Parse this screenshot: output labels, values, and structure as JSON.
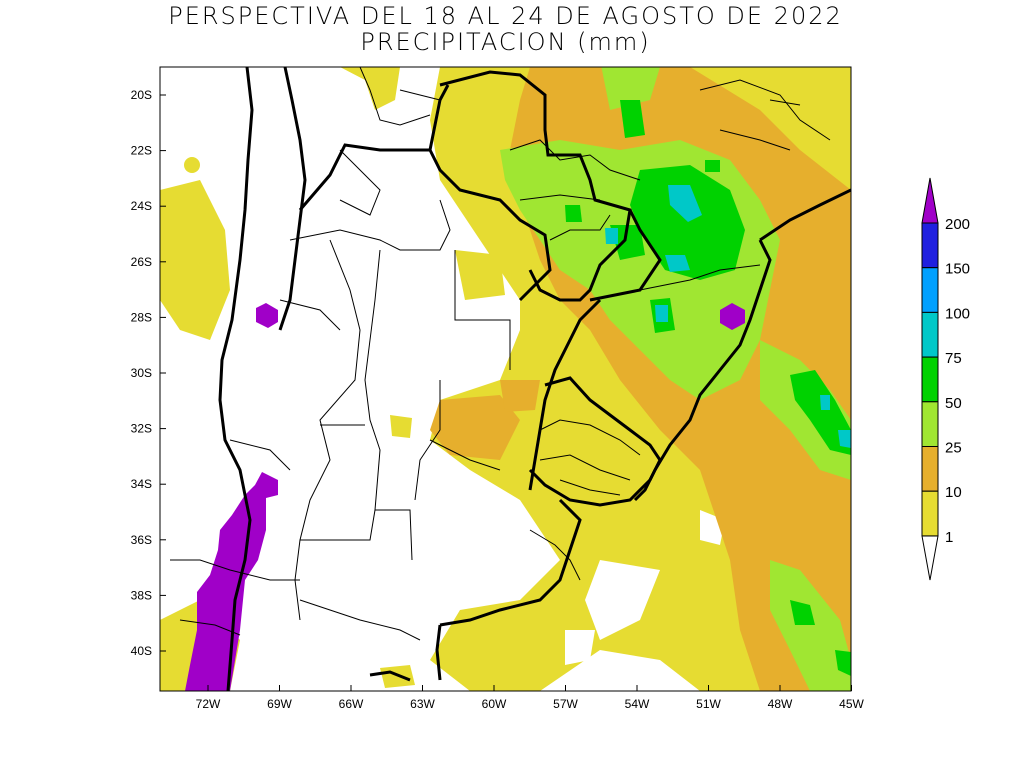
{
  "title": "PERSPECTIVA DEL 18 AL 24 DE AGOSTO DE 2022",
  "subtitle": "PRECIPITACION (mm)",
  "lat_ticks": [
    "20S",
    "22S",
    "24S",
    "26S",
    "28S",
    "30S",
    "32S",
    "34S",
    "36S",
    "38S",
    "40S"
  ],
  "lon_ticks": [
    "72W",
    "69W",
    "66W",
    "63W",
    "60W",
    "57W",
    "54W",
    "51W",
    "48W",
    "45W"
  ],
  "legend": {
    "labels": [
      "200",
      "150",
      "100",
      "75",
      "50",
      "25",
      "10",
      "1"
    ],
    "colors": {
      "over200": "#a000c8",
      "c150_200": "#2020e0",
      "c100_150": "#00a0ff",
      "c75_100": "#00c8c8",
      "c50_75": "#00d200",
      "c25_50": "#a0e632",
      "c10_25": "#e6af2d",
      "c1_10": "#e6dc32",
      "below1": "#ffffff"
    }
  }
}
